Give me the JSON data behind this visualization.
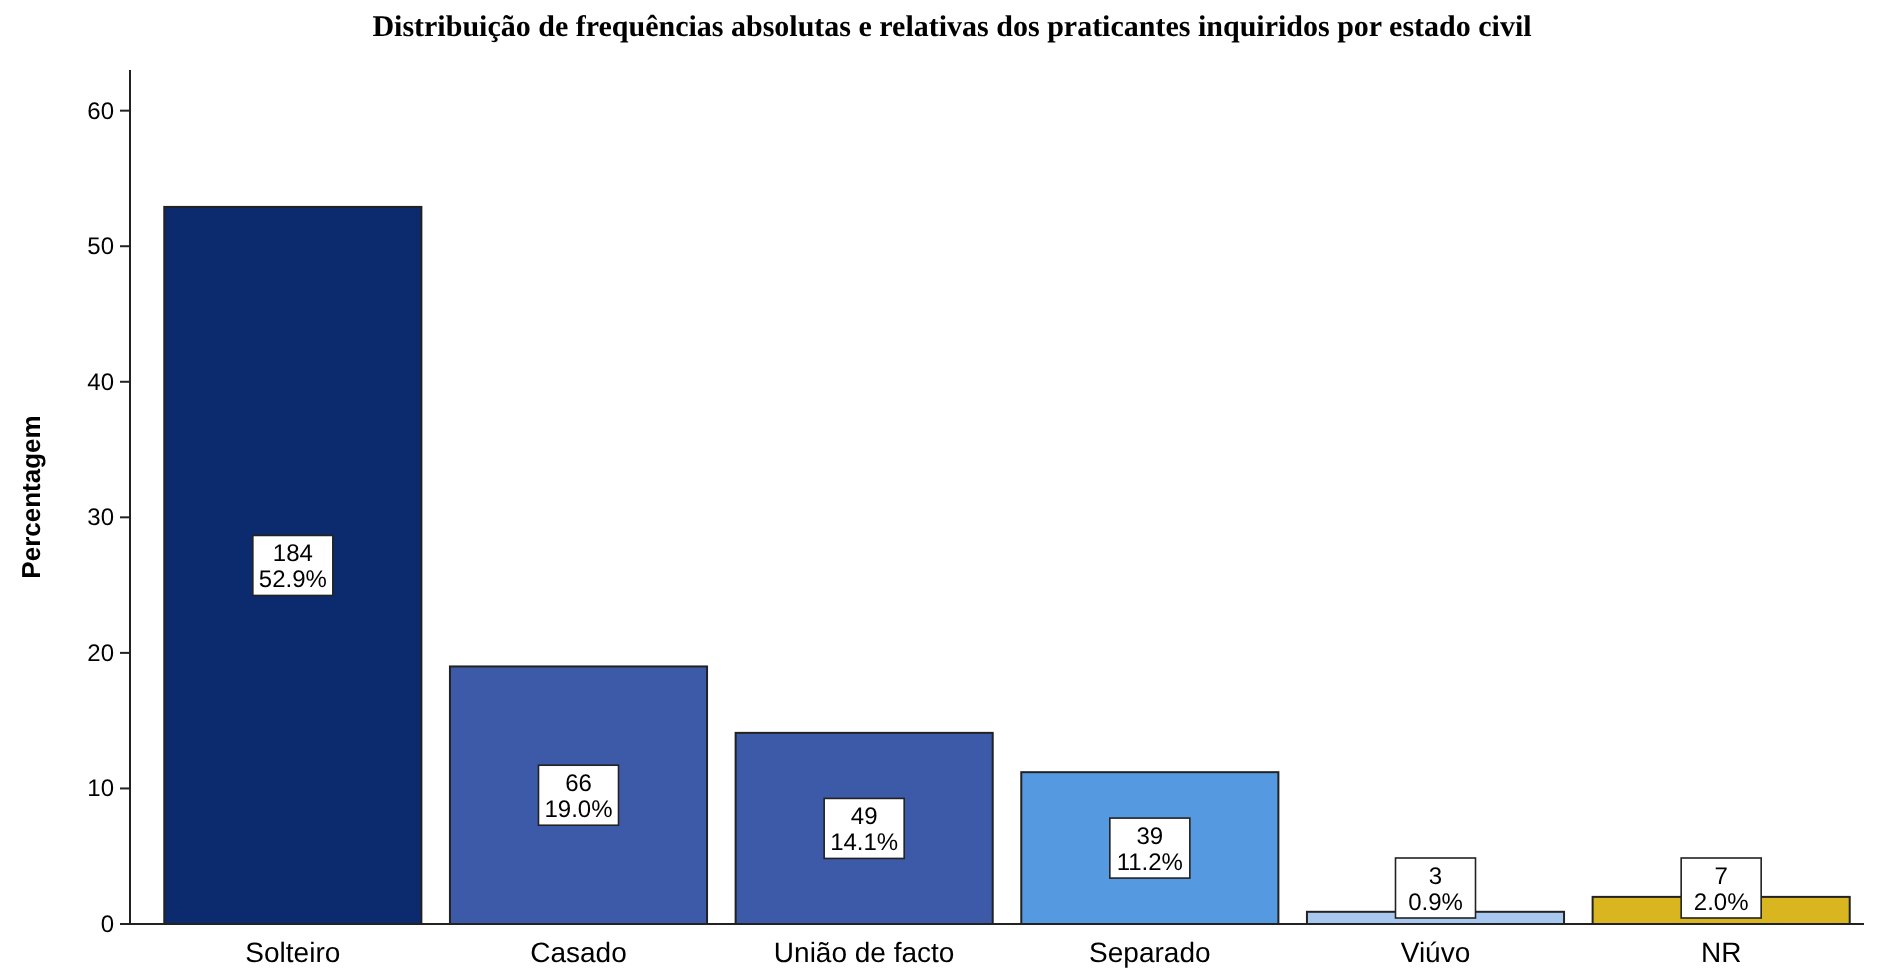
{
  "chart_data": {
    "type": "bar",
    "title": "Distribuição de frequências absolutas e relativas dos praticantes inquiridos por estado civil",
    "ylabel": "Percentagem",
    "categories": [
      "Solteiro",
      "Casado",
      "União de facto",
      "Separado",
      "Viúvo",
      "NR"
    ],
    "values": [
      52.9,
      19.0,
      14.1,
      11.2,
      0.9,
      2.0
    ],
    "colors": [
      "#0c2a6e",
      "#3d5aa8",
      "#3d5aa8",
      "#5599e0",
      "#a8c8f0",
      "#d9b520"
    ],
    "value_labels": [
      "184\n52.9%",
      "66\n19.0%",
      "49\n14.1%",
      "39\n11.2%",
      "3\n0.9%",
      "7\n2.0%"
    ],
    "ylim": [
      0,
      63
    ],
    "yticks": [
      0,
      10,
      20,
      30,
      40,
      50,
      60
    ],
    "grid": false
  }
}
